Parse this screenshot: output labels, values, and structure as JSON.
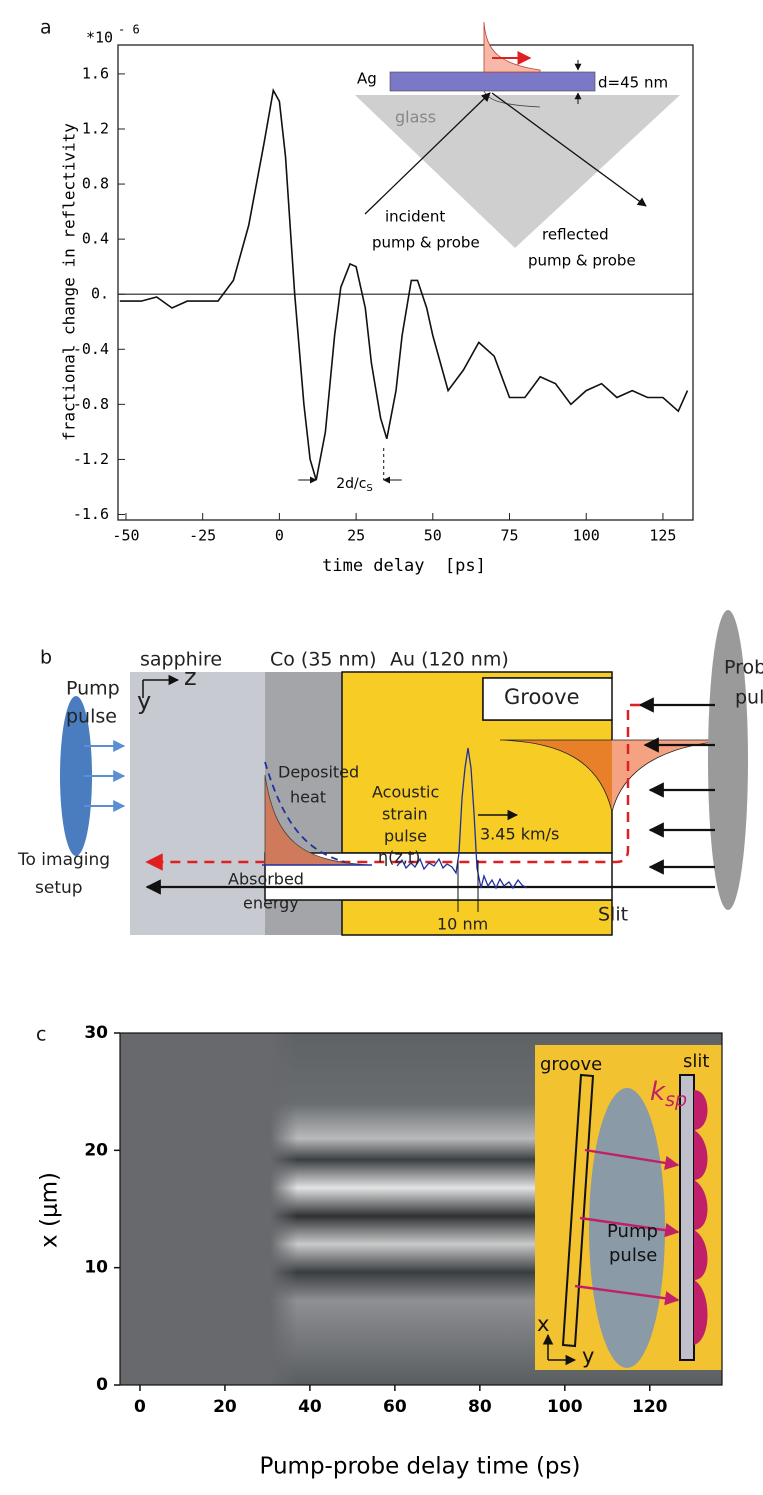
{
  "panel_labels": [
    "a",
    "b",
    "c"
  ],
  "chart_data": [
    {
      "type": "line",
      "y_label": "fractional change in reflectivity",
      "x_label": "time delay  [ps]",
      "y_multiplier": "*10",
      "y_exponent": "- 6",
      "x": [
        -52,
        -45,
        -40,
        -35,
        -30,
        -25,
        -20,
        -15,
        -10,
        -5,
        -2,
        0,
        2,
        5,
        8,
        10,
        12,
        15,
        18,
        20,
        23,
        25,
        28,
        30,
        33,
        35,
        38,
        40,
        43,
        45,
        48,
        50,
        55,
        60,
        65,
        70,
        75,
        80,
        85,
        90,
        95,
        100,
        105,
        110,
        115,
        120,
        125,
        130,
        133
      ],
      "values": [
        -0.05,
        -0.05,
        -0.02,
        -0.1,
        -0.05,
        -0.05,
        -0.05,
        0.1,
        0.5,
        1.1,
        1.48,
        1.4,
        1.0,
        0.0,
        -0.8,
        -1.2,
        -1.35,
        -1.0,
        -0.3,
        0.05,
        0.22,
        0.2,
        -0.1,
        -0.5,
        -0.9,
        -1.05,
        -0.7,
        -0.3,
        0.1,
        0.1,
        -0.1,
        -0.3,
        -0.7,
        -0.55,
        -0.35,
        -0.45,
        -0.75,
        -0.75,
        -0.6,
        -0.65,
        -0.8,
        -0.7,
        -0.65,
        -0.75,
        -0.7,
        -0.75,
        -0.75,
        -0.85,
        -0.7
      ],
      "color": "#111111",
      "xlim": [
        -52.6,
        134.8
      ],
      "ylim": [
        -1.64,
        1.81
      ],
      "xticks": [
        -50,
        -25,
        0,
        25,
        50,
        75,
        100,
        125
      ],
      "yticks": [
        1.6,
        1.2,
        0.8,
        0.4,
        {
          "value": 0,
          "label": "0."
        },
        -0.4,
        -0.8,
        -1.2,
        -1.6
      ],
      "zero_line": true,
      "annotation": {
        "text": "2d/c",
        "subscript": "S",
        "x_range": [
          12,
          34
        ]
      },
      "inset": {
        "metal": "Ag",
        "thickness": "d=45 nm",
        "substrate": "glass",
        "incident": [
          "incident",
          "pump & probe"
        ],
        "reflected": [
          "reflected",
          "pump & probe"
        ]
      }
    },
    {
      "type": "heatmap",
      "x_label": "Pump-probe delay time (ps)",
      "y_label": "x (μm)",
      "xlim": [
        -4.7,
        137
      ],
      "ylim": [
        0,
        30
      ],
      "xticks": [
        0,
        20,
        40,
        60,
        80,
        100,
        120
      ],
      "yticks": [
        0,
        10,
        20,
        30
      ],
      "inset": {
        "groove": "groove",
        "slit": "slit",
        "wavevector": "k",
        "wavevector_subscript": "sp",
        "pump": [
          "Pump",
          "pulse"
        ],
        "axis_x": "x",
        "axis_y": "y"
      }
    }
  ],
  "diagram_b": {
    "layers": [
      "sapphire",
      "Co (35 nm)",
      "Au (120 nm)"
    ],
    "probe": [
      "Probe",
      "pulse"
    ],
    "pump": [
      "Pump",
      "pulse"
    ],
    "axis_z": "z",
    "axis_y": "y",
    "groove": "Groove",
    "heat": [
      "Deposited",
      "heat"
    ],
    "strain": [
      "Acoustic",
      "strain",
      "pulse",
      "η(z,t)"
    ],
    "speed": "3.45 km/s",
    "absorbed": [
      "Absorbed",
      "energy"
    ],
    "width": "10 nm",
    "imaging": [
      "To imaging",
      "setup"
    ],
    "slit": "Slit"
  }
}
